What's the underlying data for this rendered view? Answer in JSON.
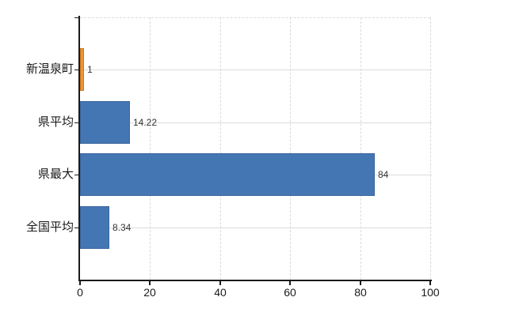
{
  "chart_data": {
    "type": "bar",
    "orientation": "horizontal",
    "title": "",
    "xlabel": "",
    "ylabel": "",
    "categories": [
      "新温泉町",
      "県平均",
      "県最大",
      "全国平均"
    ],
    "values": [
      1,
      14.22,
      84,
      8.34
    ],
    "value_labels": [
      "1",
      "14.22",
      "84",
      "8.34"
    ],
    "bar_colors": [
      "#ED9433",
      "#4576B4",
      "#4576B4",
      "#4576B4"
    ],
    "bar_border_colors": [
      "#C97A1E",
      "#3A659E",
      "#3A659E",
      "#3A659E"
    ],
    "highlight_category": "新温泉町",
    "xlim": [
      0,
      100
    ],
    "x_ticks": [
      0,
      20,
      40,
      60,
      80,
      100
    ],
    "grid": true,
    "legend_position": "none"
  },
  "colors": {
    "background": "#ffffff",
    "axis": "#1a1a1a",
    "gridline": "#d9ddd9",
    "tick_text": "#1a1a1a",
    "value_text": "#333333",
    "bar_blue": "#4576B4",
    "bar_orange": "#ED9433"
  }
}
